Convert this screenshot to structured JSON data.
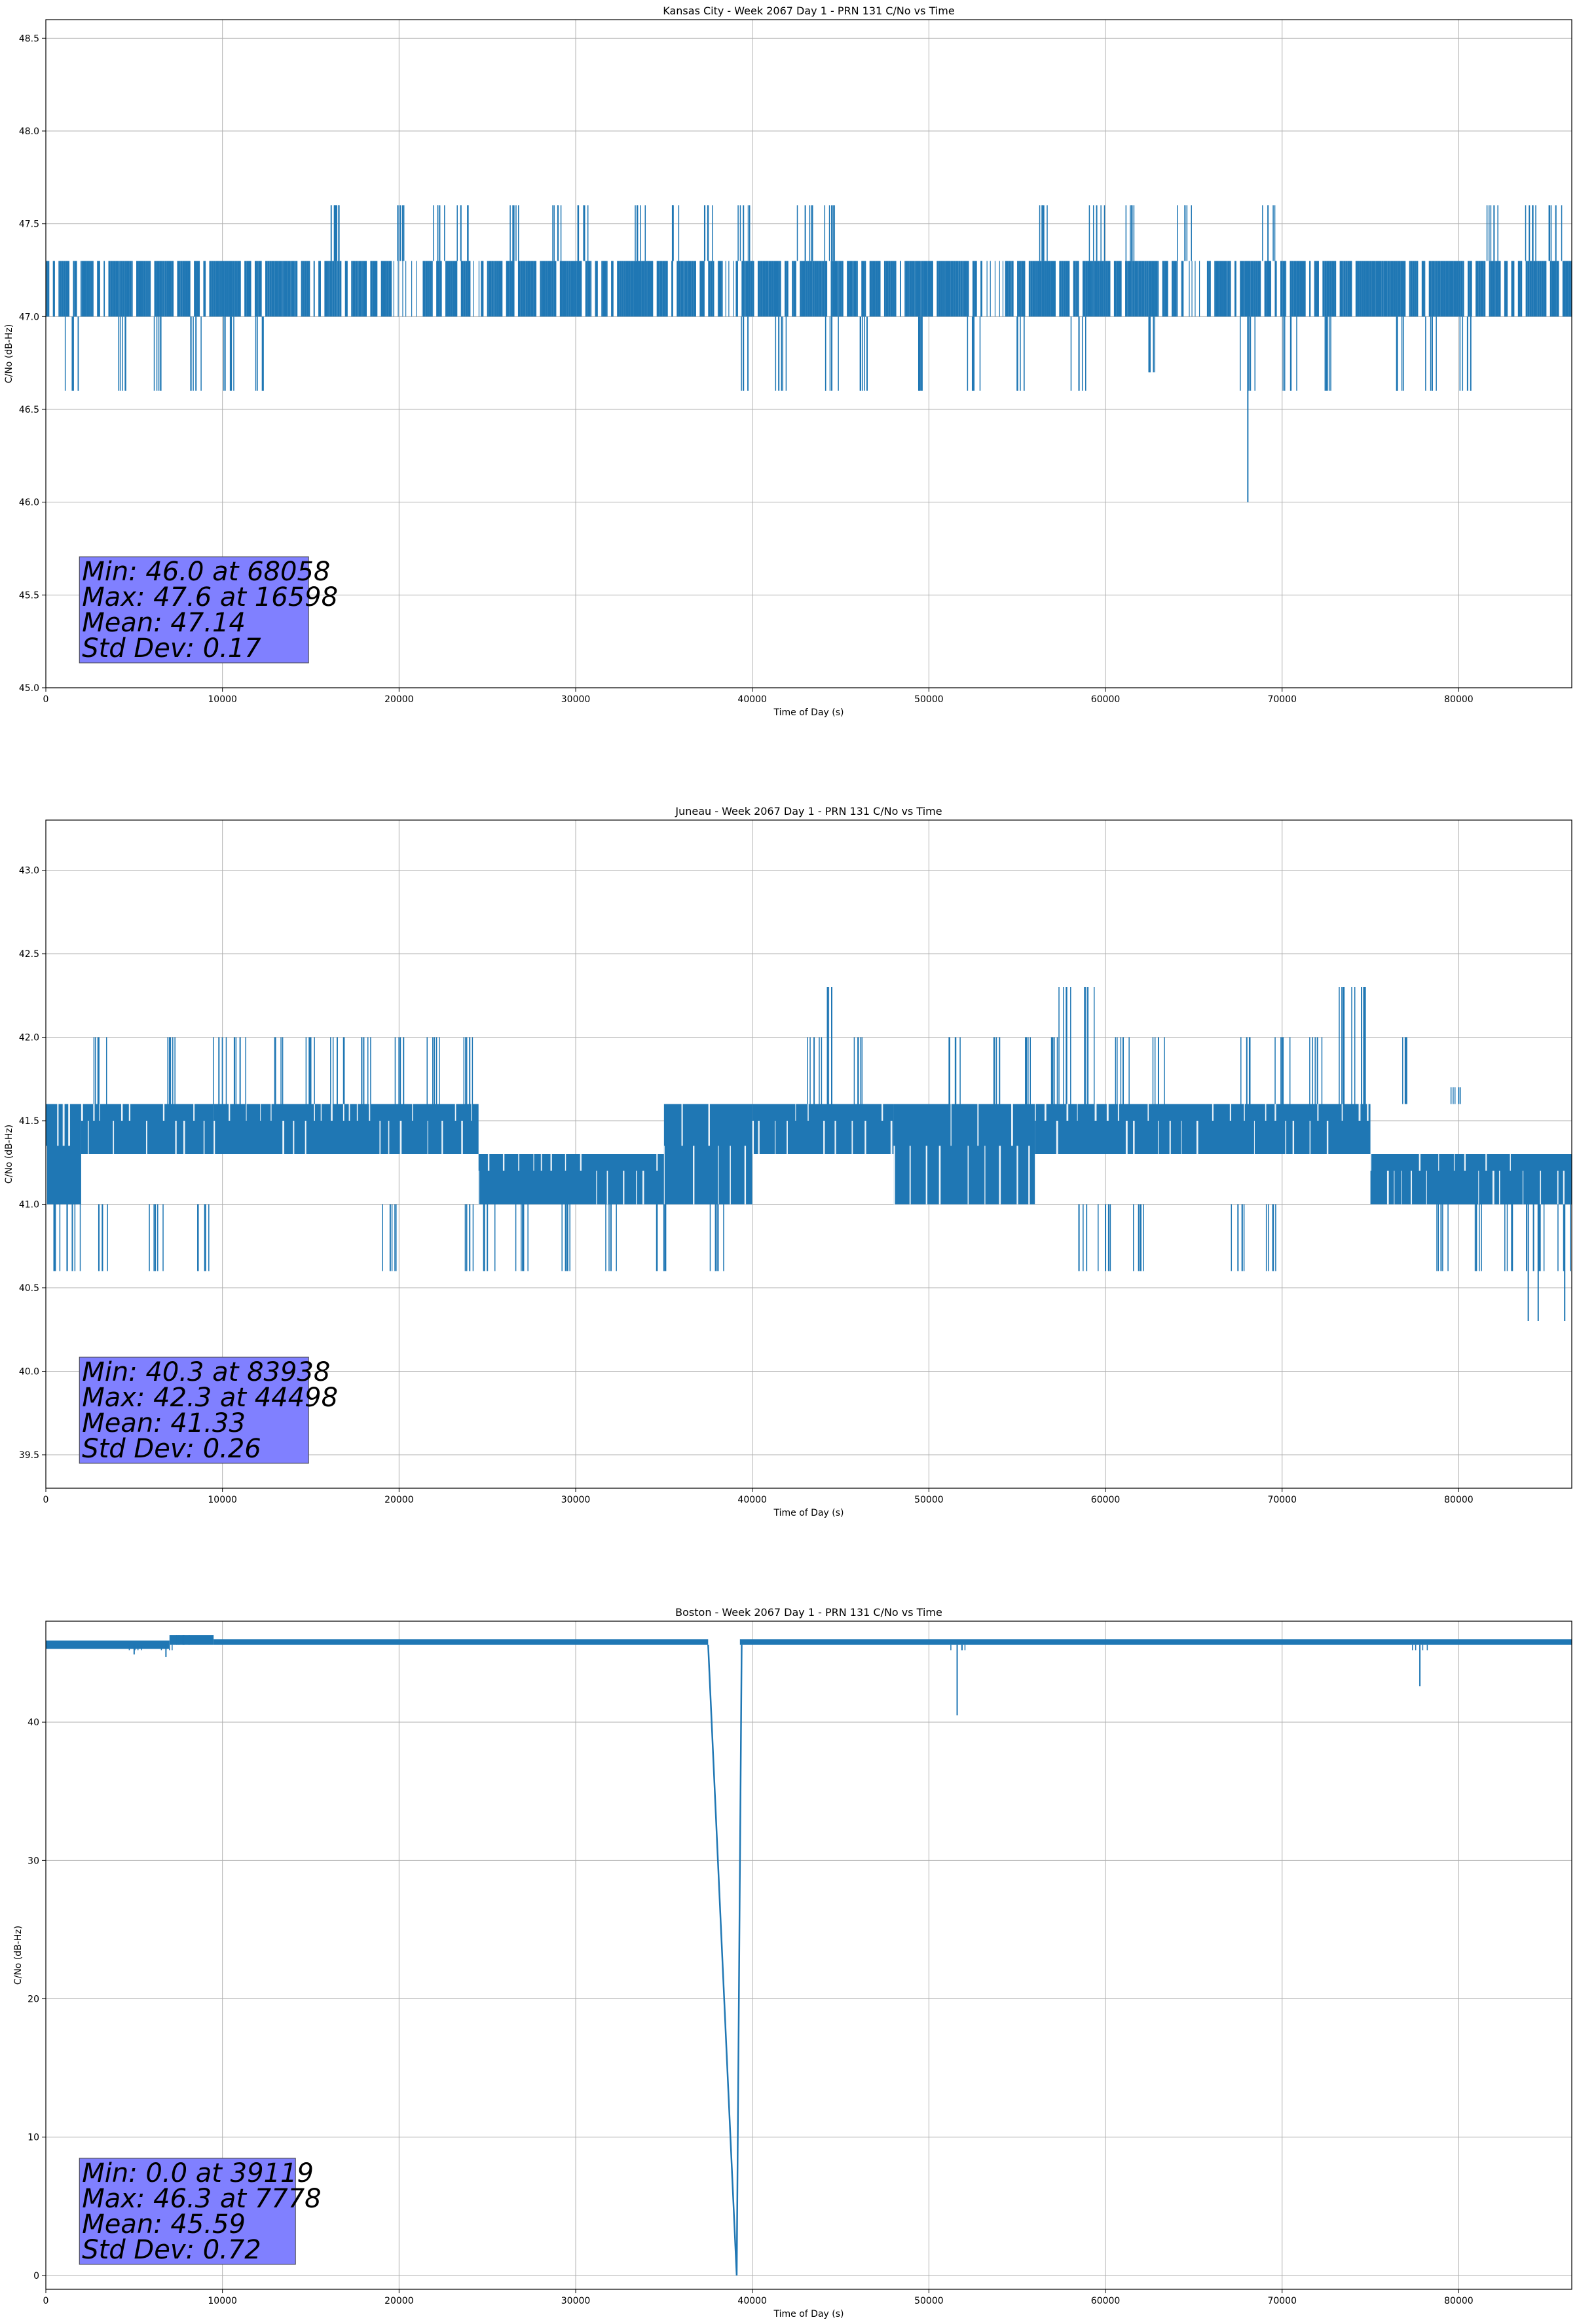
{
  "chart_data": [
    {
      "type": "line",
      "title": "Kansas City - Week 2067 Day 1 - PRN 131 C/No vs Time",
      "xlabel": "Time of Day (s)",
      "ylabel": "C/No (dB-Hz)",
      "xlim": [
        0,
        86400
      ],
      "ylim": [
        45.0,
        48.6
      ],
      "xticks": [
        0,
        10000,
        20000,
        30000,
        40000,
        50000,
        60000,
        70000,
        80000
      ],
      "yticks": [
        45.0,
        45.5,
        46.0,
        46.5,
        47.0,
        47.5,
        48.0,
        48.5
      ],
      "ytick_decimals": 1,
      "grid": true,
      "color": "#1f77b4",
      "base_band": [
        47.0,
        47.3
      ],
      "band_gaps": [
        [
          19500,
          21000
        ],
        [
          24000,
          24600
        ],
        [
          38500,
          39000
        ],
        [
          53000,
          54300
        ],
        [
          64400,
          65600
        ]
      ],
      "series": [
        {
          "values_up": [
            [
              16400,
              47.6
            ],
            [
              16598,
              47.6
            ],
            [
              20200,
              47.6
            ],
            [
              22300,
              47.6
            ],
            [
              23500,
              47.6
            ],
            [
              26500,
              47.6
            ],
            [
              29000,
              47.6
            ],
            [
              30500,
              47.6
            ],
            [
              33500,
              47.6
            ],
            [
              35500,
              47.6
            ],
            [
              37500,
              47.6
            ],
            [
              39500,
              47.6
            ],
            [
              43000,
              47.6
            ],
            [
              44500,
              47.6
            ],
            [
              56500,
              47.6
            ],
            [
              59500,
              47.6
            ],
            [
              61500,
              47.6
            ],
            [
              64500,
              47.6
            ],
            [
              69200,
              47.6
            ],
            [
              82000,
              47.6
            ],
            [
              84000,
              47.6
            ],
            [
              85500,
              47.6
            ]
          ]
        },
        {
          "values_down": [
            [
              1500,
              46.6
            ],
            [
              4500,
              46.6
            ],
            [
              6500,
              46.6
            ],
            [
              8500,
              46.6
            ],
            [
              10500,
              46.6
            ],
            [
              12300,
              46.6
            ],
            [
              39500,
              46.6
            ],
            [
              41500,
              46.6
            ],
            [
              44500,
              46.6
            ],
            [
              46500,
              46.6
            ],
            [
              49500,
              46.6
            ],
            [
              52500,
              46.6
            ],
            [
              55000,
              46.6
            ],
            [
              58500,
              46.6
            ],
            [
              62500,
              46.7
            ],
            [
              68058,
              46.0
            ],
            [
              70500,
              46.6
            ],
            [
              72500,
              46.6
            ],
            [
              76500,
              46.6
            ],
            [
              78500,
              46.6
            ],
            [
              80500,
              46.6
            ]
          ]
        }
      ],
      "stats": [
        "Min: 46.0 at 68058",
        "Max: 47.6 at 16598",
        "Mean: 47.14",
        "Std Dev: 0.17"
      ],
      "stats_box_color": "#8080ff"
    },
    {
      "type": "line",
      "title": "Juneau - Week 2067 Day 1 - PRN 131 C/No vs Time",
      "xlabel": "Time of Day (s)",
      "ylabel": "C/No (dB-Hz)",
      "xlim": [
        0,
        86400
      ],
      "ylim": [
        39.3,
        43.3
      ],
      "xticks": [
        0,
        10000,
        20000,
        30000,
        40000,
        50000,
        60000,
        70000,
        80000
      ],
      "yticks": [
        39.5,
        40.0,
        40.5,
        41.0,
        41.5,
        42.0,
        42.5,
        43.0
      ],
      "ytick_decimals": 1,
      "grid": true,
      "color": "#1f77b4",
      "segments": [
        {
          "x0": 0,
          "x1": 2000,
          "low": 41.0,
          "high": 41.6
        },
        {
          "x0": 2000,
          "x1": 9500,
          "low": 41.3,
          "high": 41.6
        },
        {
          "x0": 9500,
          "x1": 24500,
          "low": 41.3,
          "high": 41.6
        },
        {
          "x0": 24500,
          "x1": 35000,
          "low": 41.0,
          "high": 41.3
        },
        {
          "x0": 35000,
          "x1": 40000,
          "low": 41.0,
          "high": 41.6
        },
        {
          "x0": 40000,
          "x1": 48000,
          "low": 41.3,
          "high": 41.6
        },
        {
          "x0": 48000,
          "x1": 56000,
          "low": 41.0,
          "high": 41.6
        },
        {
          "x0": 56000,
          "x1": 75000,
          "low": 41.3,
          "high": 41.6
        },
        {
          "x0": 75000,
          "x1": 86400,
          "low": 41.0,
          "high": 41.3
        }
      ],
      "series": [
        {
          "values_up": [
            [
              3000,
              42.0
            ],
            [
              7000,
              42.0
            ],
            [
              9800,
              42.0
            ],
            [
              11000,
              42.0
            ],
            [
              13000,
              42.0
            ],
            [
              15000,
              42.0
            ],
            [
              16500,
              42.0
            ],
            [
              18000,
              42.0
            ],
            [
              20000,
              42.0
            ],
            [
              22000,
              42.0
            ],
            [
              24000,
              42.0
            ],
            [
              43500,
              42.0
            ],
            [
              44498,
              42.3
            ],
            [
              46000,
              42.0
            ],
            [
              51500,
              42.0
            ],
            [
              54000,
              42.0
            ],
            [
              55500,
              42.0
            ],
            [
              57000,
              42.0
            ],
            [
              57800,
              42.3
            ],
            [
              59000,
              42.3
            ],
            [
              61000,
              42.0
            ],
            [
              63000,
              42.0
            ],
            [
              68000,
              42.0
            ],
            [
              70000,
              42.0
            ],
            [
              72000,
              42.0
            ],
            [
              73500,
              42.3
            ],
            [
              74500,
              42.3
            ],
            [
              77000,
              42.0
            ],
            [
              80000,
              41.7
            ]
          ]
        },
        {
          "values_down": [
            [
              500,
              40.6
            ],
            [
              1500,
              40.6
            ],
            [
              3200,
              40.6
            ],
            [
              6200,
              40.6
            ],
            [
              9000,
              40.6
            ],
            [
              19500,
              40.6
            ],
            [
              24000,
              40.6
            ],
            [
              25000,
              40.6
            ],
            [
              27000,
              40.6
            ],
            [
              29500,
              40.6
            ],
            [
              32000,
              40.6
            ],
            [
              35000,
              40.6
            ],
            [
              38000,
              40.6
            ],
            [
              58500,
              40.6
            ],
            [
              60000,
              40.6
            ],
            [
              62000,
              40.6
            ],
            [
              67500,
              40.6
            ],
            [
              69500,
              40.6
            ],
            [
              79000,
              40.6
            ],
            [
              81000,
              40.6
            ],
            [
              83000,
              40.6
            ],
            [
              83938,
              40.3
            ],
            [
              84500,
              40.3
            ],
            [
              86000,
              40.3
            ]
          ]
        }
      ],
      "stats": [
        "Min: 40.3 at 83938",
        "Max: 42.3 at 44498",
        "Mean: 41.33",
        "Std Dev: 0.26"
      ],
      "stats_box_color": "#8080ff"
    },
    {
      "type": "line",
      "title": "Boston - Week 2067 Day 1 - PRN 131 C/No vs Time",
      "xlabel": "Time of Day (s)",
      "ylabel": "C/No (dB-Hz)",
      "xlim": [
        0,
        86400
      ],
      "ylim": [
        -1,
        47.3
      ],
      "xticks": [
        0,
        10000,
        20000,
        30000,
        40000,
        50000,
        60000,
        70000,
        80000
      ],
      "yticks": [
        0,
        10,
        20,
        30,
        40
      ],
      "ytick_decimals": 0,
      "grid": true,
      "color": "#1f77b4",
      "baseline": [
        {
          "x0": 0,
          "x1": 7000,
          "low": 45.3,
          "high": 45.9
        },
        {
          "x0": 7000,
          "x1": 9500,
          "low": 45.6,
          "high": 46.3
        },
        {
          "x0": 9500,
          "x1": 37500,
          "low": 45.6,
          "high": 46.0
        },
        {
          "x0": 39300,
          "x1": 86400,
          "low": 45.6,
          "high": 46.0
        }
      ],
      "drop": [
        [
          37500,
          45.6
        ],
        [
          39119,
          0.0
        ],
        [
          39400,
          45.6
        ]
      ],
      "series": [
        {
          "values_spikes": [
            [
              5000,
              44.9
            ],
            [
              6800,
              44.7
            ],
            [
              7778,
              46.3
            ],
            [
              51600,
              40.5
            ],
            [
              77800,
              42.6
            ]
          ]
        }
      ],
      "stats": [
        "Min: 0.0 at 39119",
        "Max: 46.3 at 7778",
        "Mean: 45.59",
        "Std Dev: 0.72"
      ],
      "stats_box_color": "#8080ff"
    }
  ]
}
